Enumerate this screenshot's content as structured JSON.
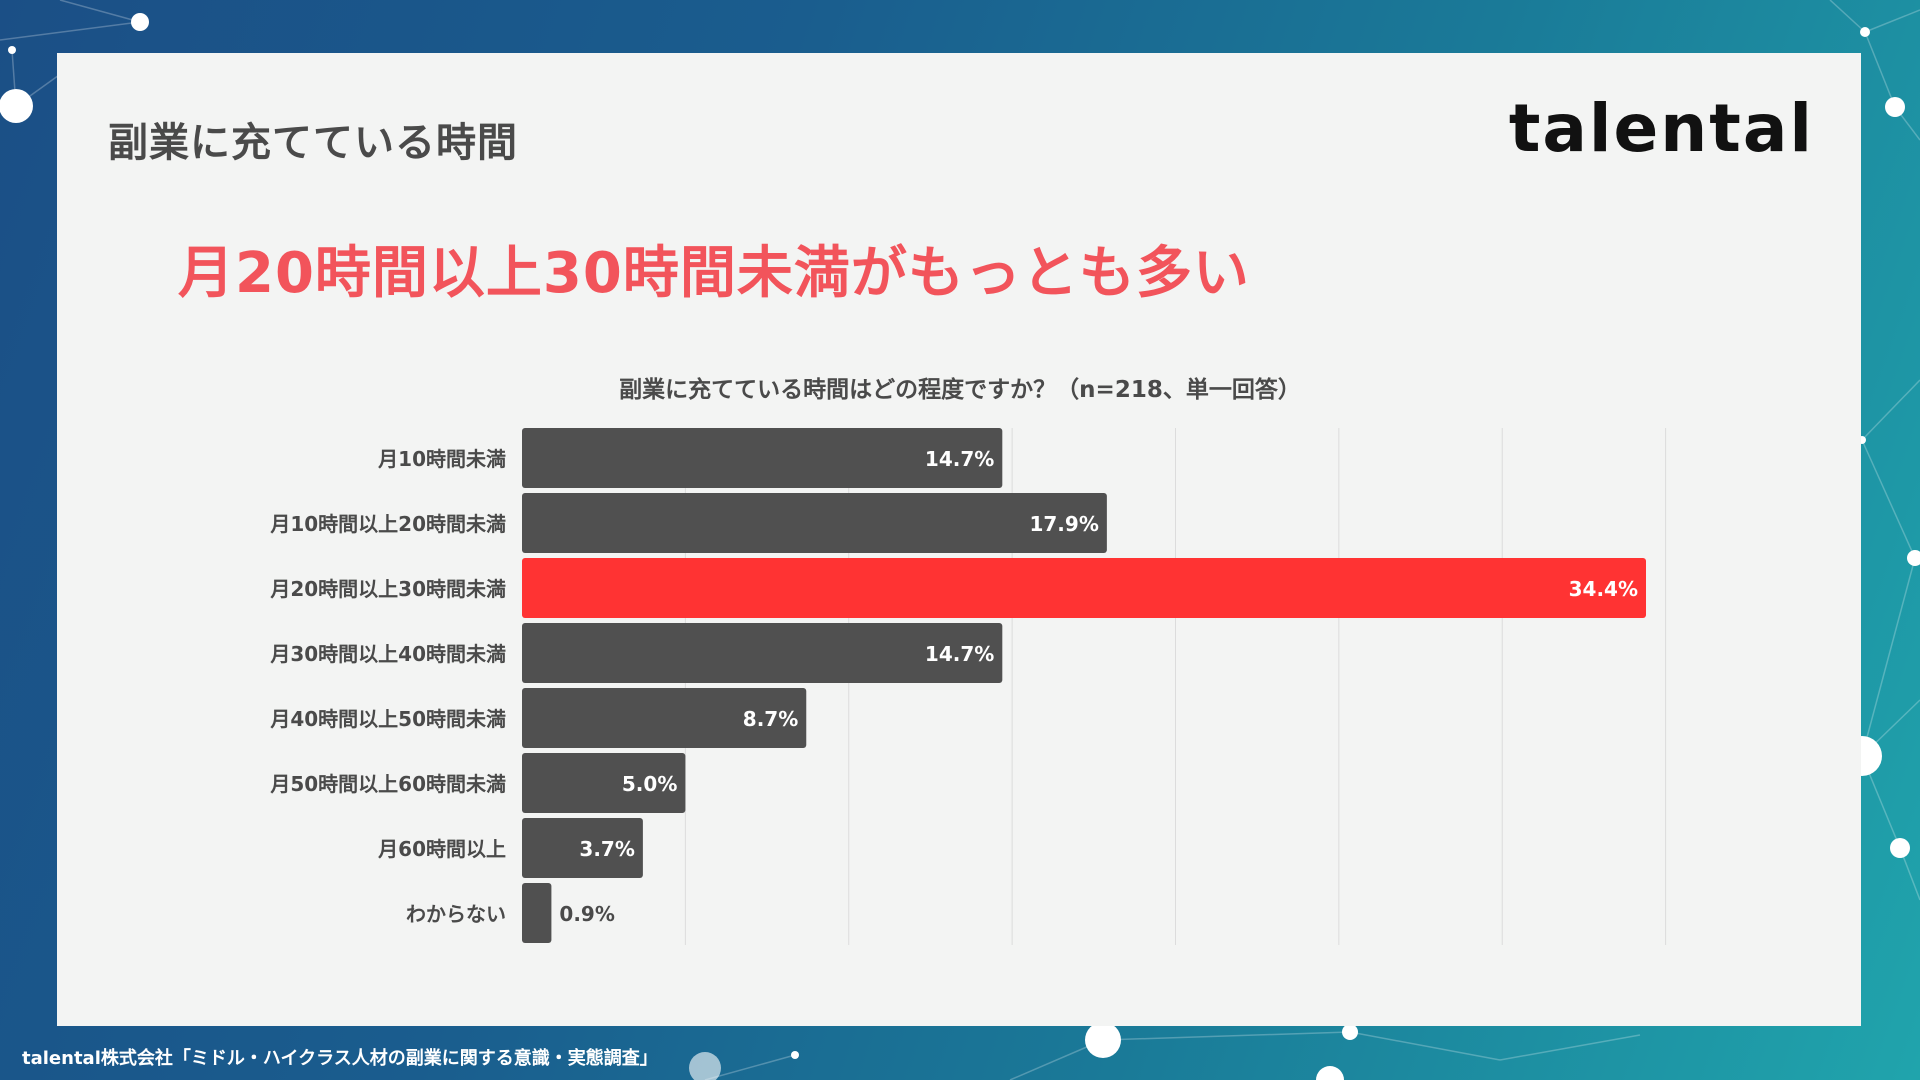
{
  "header": {
    "title": "副業に充てている時間",
    "logo": "talental"
  },
  "headline": "月20時間以上30時間未満がもっとも多い",
  "footer": {
    "source": "talental株式会社「ミドル・ハイクラス人材の副業に関する意識・実態調査」"
  },
  "colors": {
    "bar": "#505050",
    "highlight": "#ff3333",
    "headline": "#f2545b"
  },
  "chart_data": {
    "type": "bar",
    "orientation": "horizontal",
    "title": "副業に充てている時間はどの程度ですか？（n=218、単一回答）",
    "categories": [
      "月10時間未満",
      "月10時間以上20時間未満",
      "月20時間以上30時間未満",
      "月30時間以上40時間未満",
      "月40時間以上50時間未満",
      "月50時間以上60時間未満",
      "月60時間以上",
      "わからない"
    ],
    "values": [
      14.7,
      17.9,
      34.4,
      14.7,
      8.7,
      5.0,
      3.7,
      0.9
    ],
    "data_labels": [
      "14.7%",
      "17.9%",
      "34.4%",
      "14.7%",
      "8.7%",
      "5.0%",
      "3.7%",
      "0.9%"
    ],
    "highlight_index": 2,
    "xlim": [
      0,
      35
    ],
    "grid": true,
    "unit": "%"
  }
}
